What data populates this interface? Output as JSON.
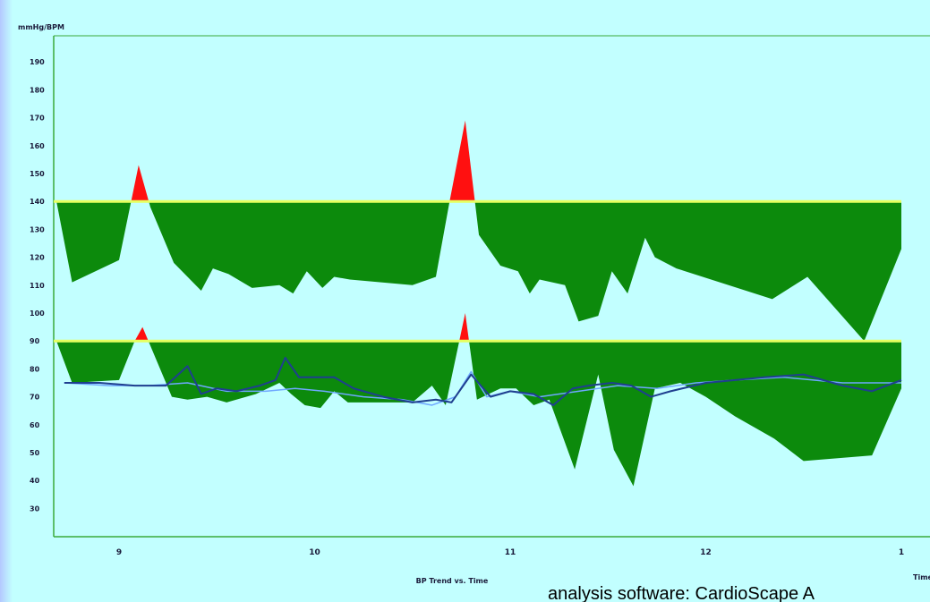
{
  "chart_data": {
    "type": "area",
    "ylabel": "mmHg/BPM",
    "xlabel": "BP Trend vs. Time",
    "x_axis_end_label": "Time",
    "y_ticks": [
      190,
      180,
      170,
      160,
      150,
      140,
      130,
      120,
      110,
      100,
      90,
      80,
      70,
      60,
      50,
      40,
      30
    ],
    "ylim": [
      20,
      195
    ],
    "x_ticks": [
      "9",
      "10",
      "11",
      "12",
      "1"
    ],
    "xlim": [
      8.68,
      13.2
    ],
    "grid": false,
    "thresholds": {
      "systolic": 140,
      "diastolic": 90
    },
    "colors": {
      "background": "#c2ffff",
      "below_threshold_fill": "#0c8a0c",
      "above_threshold_fill": "#ff1010",
      "threshold_line": "#e6ff60",
      "heart_rate_dark": "#1f3f8f",
      "heart_rate_light": "#6fa8ff",
      "axis": "#3aaa3a"
    },
    "series": [
      {
        "x": [
          8.68,
          8.76,
          9.0,
          9.1,
          9.16,
          9.28,
          9.42,
          9.48,
          9.56,
          9.68,
          9.82,
          9.89,
          9.96,
          10.04,
          10.1,
          10.18,
          10.5,
          10.62,
          10.69,
          10.77,
          10.84,
          10.95,
          11.04,
          11.1,
          11.15,
          11.28,
          11.35,
          11.45,
          11.52,
          11.6,
          11.69,
          11.74,
          11.85,
          12.34,
          12.52,
          12.81,
          13.0
        ],
        "values": [
          140,
          111,
          119,
          153,
          138,
          118,
          108,
          116,
          114,
          109,
          110,
          107,
          115,
          109,
          113,
          112,
          110,
          113,
          140,
          169,
          128,
          117,
          115,
          107,
          112,
          110,
          97,
          99,
          115,
          107,
          127,
          120,
          116,
          105,
          113,
          90,
          123
        ]
      },
      {
        "x": [
          8.68,
          8.76,
          9.0,
          9.08,
          9.12,
          9.27,
          9.35,
          9.45,
          9.55,
          9.7,
          9.82,
          9.88,
          9.95,
          10.03,
          10.1,
          10.17,
          10.35,
          10.5,
          10.6,
          10.67,
          10.77,
          10.83,
          10.95,
          11.03,
          11.12,
          11.2,
          11.33,
          11.45,
          11.53,
          11.63,
          11.74,
          11.87,
          12.0,
          12.15,
          12.35,
          12.5,
          12.85,
          13.0
        ],
        "values": [
          90,
          75,
          76,
          90,
          95,
          70,
          69,
          70,
          68,
          71,
          75,
          71,
          67,
          66,
          72,
          68,
          68,
          68,
          74,
          67,
          100,
          69,
          73,
          73,
          67,
          69,
          44,
          78,
          51,
          38,
          73,
          75,
          70,
          63,
          55,
          47,
          49,
          73
        ]
      },
      {
        "x": [
          8.72,
          8.9,
          9.08,
          9.24,
          9.35,
          9.42,
          9.5,
          9.6,
          9.72,
          9.8,
          9.85,
          9.92,
          10.0,
          10.1,
          10.2,
          10.35,
          10.5,
          10.62,
          10.7,
          10.8,
          10.9,
          11.0,
          11.12,
          11.22,
          11.32,
          11.4,
          11.52,
          11.62,
          11.72,
          11.82,
          12.0,
          12.3,
          12.5,
          12.7,
          12.85,
          13.0
        ],
        "values": [
          75,
          75,
          74,
          74,
          81,
          71,
          73,
          72,
          74,
          76,
          84,
          77,
          77,
          77,
          73,
          70,
          68,
          69,
          68,
          78,
          70,
          72,
          71,
          67,
          73,
          74,
          75,
          74,
          70,
          72,
          75,
          77,
          78,
          74,
          72,
          76
        ]
      },
      {
        "x": [
          8.72,
          8.95,
          9.15,
          9.35,
          9.55,
          9.75,
          9.9,
          10.05,
          10.25,
          10.45,
          10.6,
          10.72,
          10.8,
          10.88,
          11.0,
          11.15,
          11.35,
          11.55,
          11.75,
          11.95,
          12.15,
          12.4,
          12.7,
          13.0
        ],
        "values": [
          75,
          74,
          74,
          75,
          72,
          72,
          73,
          72,
          70,
          69,
          67,
          70,
          79,
          70,
          72,
          70,
          72,
          74,
          73,
          75,
          76,
          77,
          75,
          75
        ]
      }
    ]
  },
  "caption": "analysis software: CardioScape A"
}
